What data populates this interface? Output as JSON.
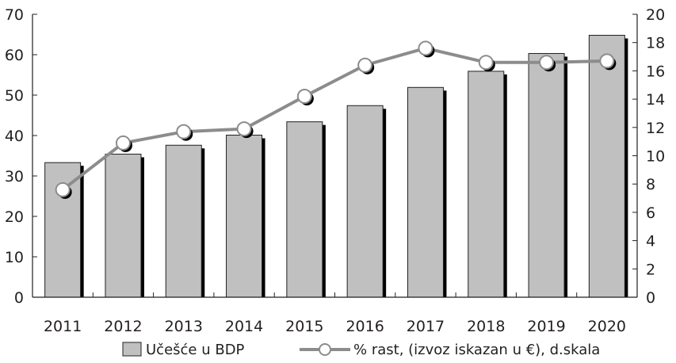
{
  "chart_data": {
    "type": "bar",
    "categories": [
      "2011",
      "2012",
      "2013",
      "2014",
      "2015",
      "2016",
      "2017",
      "2018",
      "2019",
      "2020"
    ],
    "series": [
      {
        "name": "Učešće u BDP",
        "type": "bar",
        "axis": "left",
        "values": [
          33.3,
          35.4,
          37.6,
          40.1,
          43.4,
          47.4,
          51.9,
          55.9,
          60.3,
          64.8
        ],
        "color": "#c0c0c0",
        "shadow_color": "#000000"
      },
      {
        "name": "% rast, (izvoz iskazan u €), d.skala",
        "type": "line",
        "axis": "right",
        "values": [
          7.6,
          10.9,
          11.7,
          11.9,
          14.2,
          16.4,
          17.6,
          16.6,
          16.6,
          16.7
        ],
        "color": "#8c8c8c",
        "marker_fill": "#ffffff"
      }
    ],
    "y_left": {
      "ylim": [
        0,
        70
      ],
      "ticks": [
        0,
        10,
        20,
        30,
        40,
        50,
        60,
        70
      ]
    },
    "y_right": {
      "ylim": [
        0,
        20
      ],
      "ticks": [
        0,
        2,
        4,
        6,
        8,
        10,
        12,
        14,
        16,
        18,
        20
      ]
    },
    "grid": false,
    "legend": {
      "position": "bottom"
    },
    "colors": {
      "axis": "#231f20",
      "text": "#231f20",
      "bar_border": "#231f20"
    }
  }
}
